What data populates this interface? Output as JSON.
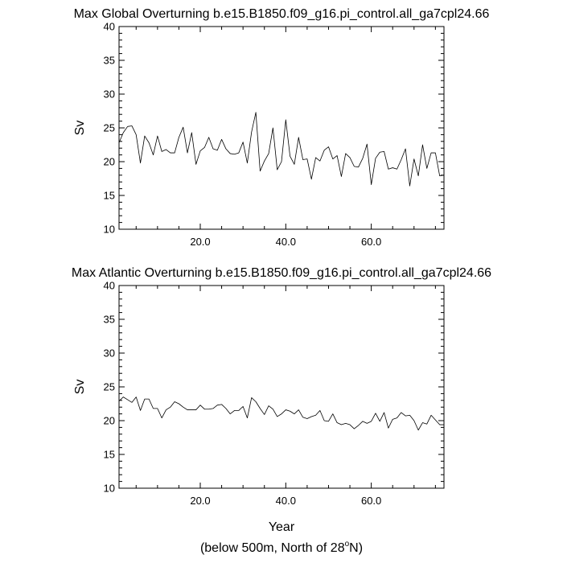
{
  "figure": {
    "xlabel": "Year",
    "caption_main": "(below 500m, North of 28",
    "caption_degree": "o",
    "caption_end": "N)"
  },
  "chart_data": [
    {
      "type": "line",
      "title": "Max Global Overturning b.e15.B1850.f09_g16.pi_control.all_ga7cpl24.66",
      "xlabel": "",
      "ylabel": "Sv",
      "xlim": [
        1,
        77
      ],
      "ylim": [
        10,
        40
      ],
      "x_ticks": [
        20,
        40,
        60
      ],
      "x_tick_labels": [
        "20.0",
        "40.0",
        "60.0"
      ],
      "y_ticks": [
        10,
        15,
        20,
        25,
        30,
        35,
        40
      ],
      "y_tick_labels": [
        "10",
        "15",
        "20",
        "25",
        "30",
        "35",
        "40"
      ],
      "grid": false,
      "series": [
        {
          "color": "#000000",
          "x": [
            1,
            2,
            3,
            4,
            5,
            6,
            7,
            8,
            9,
            10,
            11,
            12,
            13,
            14,
            15,
            16,
            17,
            18,
            19,
            20,
            21,
            22,
            23,
            24,
            25,
            26,
            27,
            28,
            29,
            30,
            31,
            32,
            33,
            34,
            35,
            36,
            37,
            38,
            39,
            40,
            41,
            42,
            43,
            44,
            45,
            46,
            47,
            48,
            49,
            50,
            51,
            52,
            53,
            54,
            55,
            56,
            57,
            58,
            59,
            60,
            61,
            62,
            63,
            64,
            65,
            66,
            67,
            68,
            69,
            70,
            71,
            72,
            73,
            74,
            75,
            76,
            77
          ],
          "values": [
            22.8,
            24.3,
            25.2,
            25.3,
            24.0,
            19.8,
            23.8,
            22.8,
            21.0,
            23.8,
            21.5,
            21.8,
            21.3,
            21.3,
            23.6,
            25.1,
            21.3,
            24.3,
            19.6,
            21.6,
            22.1,
            23.6,
            21.9,
            21.7,
            23.3,
            21.9,
            21.2,
            21.1,
            21.3,
            22.9,
            19.8,
            24.4,
            27.3,
            18.6,
            20.1,
            21.2,
            25.0,
            18.8,
            20.0,
            26.2,
            20.8,
            19.6,
            23.6,
            20.3,
            20.4,
            17.4,
            20.6,
            20.1,
            21.7,
            22.2,
            20.4,
            20.9,
            17.8,
            21.2,
            20.6,
            19.3,
            19.2,
            20.5,
            22.6,
            16.6,
            20.5,
            21.4,
            21.5,
            18.9,
            19.1,
            18.9,
            20.3,
            21.9,
            16.4,
            20.4,
            17.9,
            22.5,
            19.0,
            21.3,
            21.3,
            17.9,
            18.0
          ]
        }
      ]
    },
    {
      "type": "line",
      "title": "Max Atlantic Overturning b.e15.B1850.f09_g16.pi_control.all_ga7cpl24.66",
      "xlabel": "Year",
      "ylabel": "Sv",
      "xlim": [
        1,
        77
      ],
      "ylim": [
        10,
        40
      ],
      "x_ticks": [
        20,
        40,
        60
      ],
      "x_tick_labels": [
        "20.0",
        "40.0",
        "60.0"
      ],
      "y_ticks": [
        10,
        15,
        20,
        25,
        30,
        35,
        40
      ],
      "y_tick_labels": [
        "10",
        "15",
        "20",
        "25",
        "30",
        "35",
        "40"
      ],
      "grid": false,
      "series": [
        {
          "color": "#000000",
          "x": [
            1,
            2,
            3,
            4,
            5,
            6,
            7,
            8,
            9,
            10,
            11,
            12,
            13,
            14,
            15,
            16,
            17,
            18,
            19,
            20,
            21,
            22,
            23,
            24,
            25,
            26,
            27,
            28,
            29,
            30,
            31,
            32,
            33,
            34,
            35,
            36,
            37,
            38,
            39,
            40,
            41,
            42,
            43,
            44,
            45,
            46,
            47,
            48,
            49,
            50,
            51,
            52,
            53,
            54,
            55,
            56,
            57,
            58,
            59,
            60,
            61,
            62,
            63,
            64,
            65,
            66,
            67,
            68,
            69,
            70,
            71,
            72,
            73,
            74,
            75,
            76,
            77
          ],
          "values": [
            22.9,
            23.5,
            23.1,
            22.7,
            23.5,
            21.5,
            23.2,
            23.2,
            21.8,
            21.8,
            20.4,
            21.6,
            22.0,
            22.8,
            22.5,
            22.0,
            21.6,
            21.6,
            21.6,
            22.3,
            21.7,
            21.7,
            21.8,
            22.3,
            22.4,
            21.8,
            21.0,
            21.5,
            21.5,
            22.1,
            20.4,
            23.4,
            22.8,
            21.8,
            20.9,
            22.2,
            21.7,
            20.6,
            21.0,
            21.6,
            21.4,
            21.0,
            21.6,
            20.5,
            20.3,
            20.6,
            20.8,
            21.5,
            20.0,
            19.9,
            21.0,
            19.7,
            19.4,
            19.6,
            19.4,
            18.8,
            19.3,
            19.9,
            19.6,
            19.9,
            21.1,
            19.9,
            21.2,
            18.9,
            20.2,
            20.4,
            21.2,
            20.7,
            20.8,
            20.0,
            18.6,
            19.7,
            19.5,
            20.8,
            20.1,
            19.4,
            19.4
          ]
        }
      ]
    }
  ]
}
